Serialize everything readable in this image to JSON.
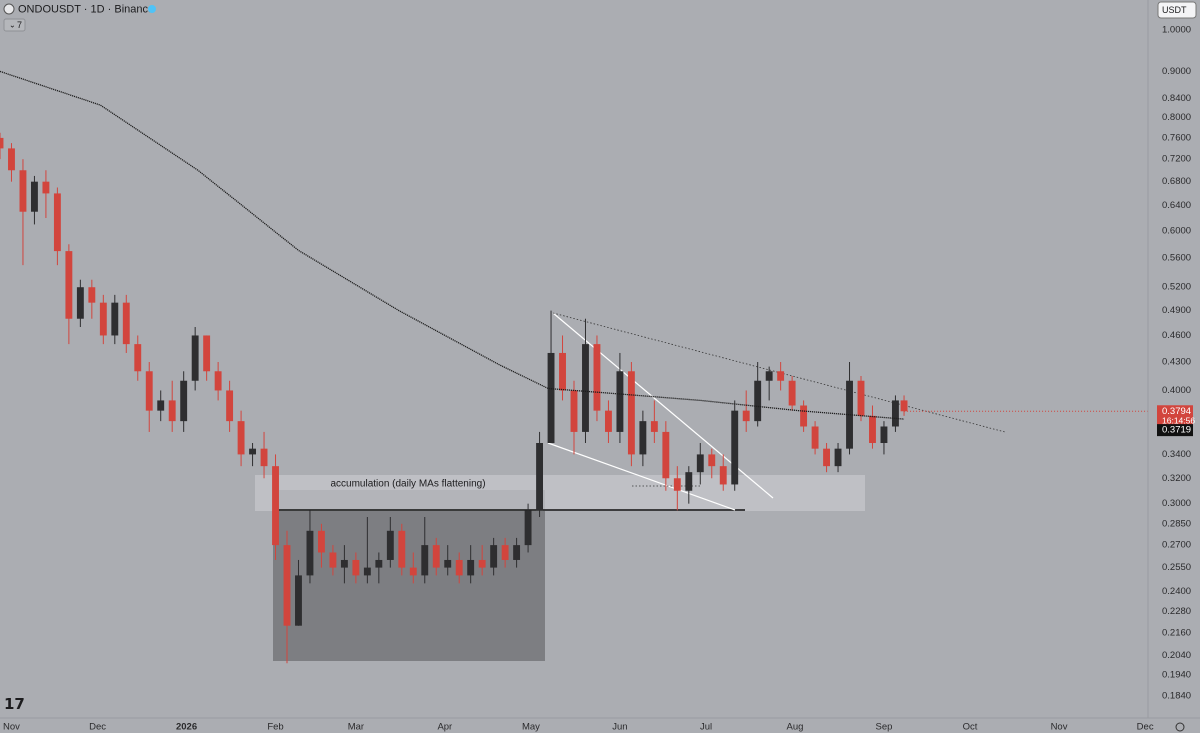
{
  "chart_data": {
    "type": "candlestick",
    "title": "ONDOUSDT · 1D · Binance",
    "currency": "USDT",
    "indicator_count": 7,
    "annotation": "accumulation (daily MAs flattening)",
    "countdown": "16:14:56",
    "log_scale": true,
    "grid": false,
    "up_color": "#2e2e30",
    "down_color": "#d2453d",
    "ma_color": "#1e1e1e",
    "xlim": [
      -4,
      396
    ],
    "ylim": [
      0.174,
      1.079
    ],
    "xticks": [
      {
        "value": 0,
        "label": "Nov"
      },
      {
        "value": 30,
        "label": "Dec"
      },
      {
        "value": 61,
        "label": "2026"
      },
      {
        "value": 92,
        "label": "Feb"
      },
      {
        "value": 120,
        "label": "Mar"
      },
      {
        "value": 151,
        "label": "Apr"
      },
      {
        "value": 181,
        "label": "May"
      },
      {
        "value": 212,
        "label": "Jun"
      },
      {
        "value": 242,
        "label": "Jul"
      },
      {
        "value": 273,
        "label": "Aug"
      },
      {
        "value": 304,
        "label": "Sep"
      },
      {
        "value": 334,
        "label": "Oct"
      },
      {
        "value": 365,
        "label": "Nov"
      },
      {
        "value": 395,
        "label": "Dec"
      }
    ],
    "yticks": [
      {
        "value": 1,
        "label": "1.0000"
      },
      {
        "value": 0.9,
        "label": "0.9000"
      },
      {
        "value": 0.84,
        "label": "0.8400"
      },
      {
        "value": 0.8,
        "label": "0.8000"
      },
      {
        "value": 0.76,
        "label": "0.7600"
      },
      {
        "value": 0.72,
        "label": "0.7200"
      },
      {
        "value": 0.68,
        "label": "0.6800"
      },
      {
        "value": 0.64,
        "label": "0.6400"
      },
      {
        "value": 0.6,
        "label": "0.6000"
      },
      {
        "value": 0.56,
        "label": "0.5600"
      },
      {
        "value": 0.52,
        "label": "0.5200"
      },
      {
        "value": 0.49,
        "label": "0.4900"
      },
      {
        "value": 0.46,
        "label": "0.4600"
      },
      {
        "value": 0.43,
        "label": "0.4300"
      },
      {
        "value": 0.4,
        "label": "0.4000"
      },
      {
        "value": 0.34,
        "label": "0.3400"
      },
      {
        "value": 0.32,
        "label": "0.3200"
      },
      {
        "value": 0.3,
        "label": "0.3000"
      },
      {
        "value": 0.285,
        "label": "0.2850"
      },
      {
        "value": 0.27,
        "label": "0.2700"
      },
      {
        "value": 0.255,
        "label": "0.2550"
      },
      {
        "value": 0.24,
        "label": "0.2400"
      },
      {
        "value": 0.228,
        "label": "0.2280"
      },
      {
        "value": 0.216,
        "label": "0.2160"
      },
      {
        "value": 0.204,
        "label": "0.2040"
      },
      {
        "value": 0.194,
        "label": "0.1940"
      },
      {
        "value": 0.184,
        "label": "0.1840"
      }
    ],
    "x": [
      -4,
      0,
      4,
      8,
      12,
      16,
      20,
      24,
      28,
      32,
      36,
      40,
      44,
      48,
      52,
      56,
      60,
      64,
      68,
      72,
      76,
      80,
      84,
      88,
      92,
      96,
      100,
      104,
      108,
      112,
      116,
      120,
      124,
      128,
      132,
      136,
      140,
      144,
      148,
      152,
      156,
      160,
      164,
      168,
      172,
      176,
      180,
      184,
      188,
      192,
      196,
      200,
      204,
      208,
      212,
      216,
      220,
      224,
      228,
      232,
      236,
      240,
      244,
      248,
      252,
      256,
      260,
      264,
      268,
      272,
      276,
      280,
      284,
      288,
      292,
      296,
      300,
      304,
      308,
      311
    ],
    "open": [
      0.76,
      0.74,
      0.7,
      0.63,
      0.68,
      0.66,
      0.57,
      0.48,
      0.52,
      0.5,
      0.46,
      0.5,
      0.45,
      0.42,
      0.38,
      0.39,
      0.37,
      0.41,
      0.46,
      0.42,
      0.4,
      0.37,
      0.34,
      0.345,
      0.33,
      0.27,
      0.22,
      0.25,
      0.28,
      0.265,
      0.255,
      0.26,
      0.25,
      0.255,
      0.26,
      0.28,
      0.255,
      0.25,
      0.27,
      0.255,
      0.26,
      0.25,
      0.26,
      0.255,
      0.27,
      0.26,
      0.27,
      0.295,
      0.35,
      0.44,
      0.4,
      0.36,
      0.45,
      0.38,
      0.36,
      0.42,
      0.34,
      0.37,
      0.36,
      0.32,
      0.31,
      0.325,
      0.34,
      0.33,
      0.315,
      0.38,
      0.37,
      0.41,
      0.42,
      0.41,
      0.385,
      0.365,
      0.345,
      0.33,
      0.345,
      0.41,
      0.375,
      0.35,
      0.365,
      0.39
    ],
    "high": [
      0.77,
      0.75,
      0.72,
      0.69,
      0.7,
      0.67,
      0.58,
      0.53,
      0.53,
      0.51,
      0.51,
      0.51,
      0.46,
      0.43,
      0.4,
      0.41,
      0.42,
      0.47,
      0.46,
      0.43,
      0.41,
      0.38,
      0.35,
      0.36,
      0.34,
      0.28,
      0.26,
      0.295,
      0.285,
      0.27,
      0.27,
      0.265,
      0.29,
      0.265,
      0.29,
      0.285,
      0.265,
      0.29,
      0.275,
      0.27,
      0.265,
      0.27,
      0.27,
      0.275,
      0.275,
      0.275,
      0.3,
      0.36,
      0.49,
      0.46,
      0.41,
      0.48,
      0.46,
      0.39,
      0.44,
      0.43,
      0.38,
      0.39,
      0.37,
      0.33,
      0.33,
      0.35,
      0.345,
      0.34,
      0.39,
      0.4,
      0.43,
      0.425,
      0.43,
      0.415,
      0.39,
      0.37,
      0.35,
      0.35,
      0.43,
      0.415,
      0.385,
      0.37,
      0.395,
      0.395
    ],
    "low": [
      0.72,
      0.68,
      0.55,
      0.61,
      0.62,
      0.55,
      0.45,
      0.47,
      0.48,
      0.45,
      0.45,
      0.44,
      0.41,
      0.36,
      0.37,
      0.36,
      0.36,
      0.4,
      0.41,
      0.39,
      0.36,
      0.33,
      0.33,
      0.32,
      0.26,
      0.2,
      0.22,
      0.245,
      0.255,
      0.25,
      0.245,
      0.245,
      0.245,
      0.245,
      0.255,
      0.25,
      0.245,
      0.245,
      0.25,
      0.25,
      0.245,
      0.245,
      0.25,
      0.25,
      0.255,
      0.255,
      0.265,
      0.29,
      0.35,
      0.39,
      0.34,
      0.35,
      0.37,
      0.35,
      0.35,
      0.33,
      0.33,
      0.35,
      0.31,
      0.295,
      0.3,
      0.315,
      0.32,
      0.31,
      0.31,
      0.36,
      0.365,
      0.39,
      0.4,
      0.38,
      0.36,
      0.34,
      0.325,
      0.325,
      0.34,
      0.37,
      0.345,
      0.34,
      0.36,
      0.375
    ],
    "close": [
      0.74,
      0.7,
      0.63,
      0.68,
      0.66,
      0.57,
      0.48,
      0.52,
      0.5,
      0.46,
      0.5,
      0.45,
      0.42,
      0.38,
      0.39,
      0.37,
      0.41,
      0.46,
      0.42,
      0.4,
      0.37,
      0.34,
      0.345,
      0.33,
      0.27,
      0.22,
      0.25,
      0.28,
      0.265,
      0.255,
      0.26,
      0.25,
      0.255,
      0.26,
      0.28,
      0.255,
      0.25,
      0.27,
      0.255,
      0.26,
      0.25,
      0.26,
      0.255,
      0.27,
      0.26,
      0.27,
      0.295,
      0.35,
      0.44,
      0.4,
      0.36,
      0.45,
      0.38,
      0.36,
      0.42,
      0.34,
      0.37,
      0.36,
      0.32,
      0.31,
      0.325,
      0.34,
      0.33,
      0.315,
      0.38,
      0.37,
      0.41,
      0.42,
      0.41,
      0.385,
      0.365,
      0.345,
      0.33,
      0.345,
      0.41,
      0.375,
      0.35,
      0.365,
      0.39,
      0.3794
    ],
    "ma": {
      "x": [
        -4,
        31,
        65,
        100,
        135,
        170,
        187,
        205,
        240,
        274,
        311
      ],
      "values": [
        0.9,
        0.826,
        0.7,
        0.571,
        0.49,
        0.427,
        0.402,
        0.398,
        0.39,
        0.38,
        0.3719
      ]
    }
  }
}
